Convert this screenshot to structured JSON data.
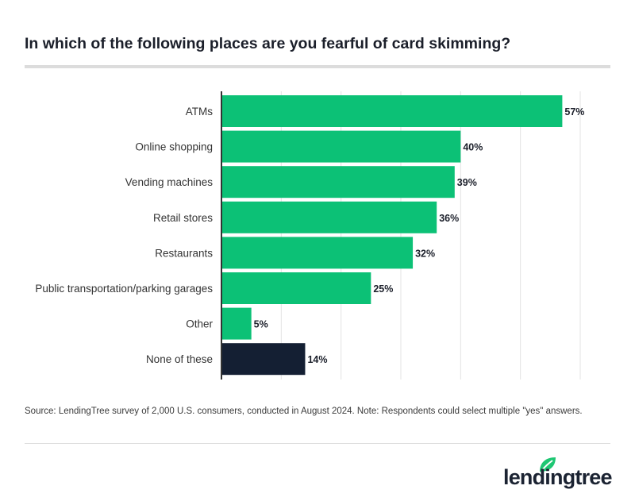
{
  "title": "In which of the following places are you fearful of card skimming?",
  "source": "Source: LendingTree survey of 2,000 U.S. consumers, conducted in August 2024. Note: Respondents could select multiple \"yes\" answers.",
  "logo": {
    "text": "lendingtree",
    "leaf_color": "#1ec773"
  },
  "colors": {
    "bar": "#0cc176",
    "highlight": "#141f33",
    "grid": "#e3e3e3",
    "axis": "#333333"
  },
  "chart_data": {
    "type": "bar",
    "orientation": "horizontal",
    "categories": [
      "ATMs",
      "Online shopping",
      "Vending machines",
      "Retail stores",
      "Restaurants",
      "Public transportation/parking garages",
      "Other",
      "None of these"
    ],
    "values": [
      57,
      40,
      39,
      36,
      32,
      25,
      5,
      14
    ],
    "data_labels": [
      "57%",
      "40%",
      "39%",
      "36%",
      "32%",
      "25%",
      "5%",
      "14%"
    ],
    "unit": "%",
    "xlim": [
      0,
      60
    ],
    "grid": true,
    "highlighted_category": "None of these"
  }
}
